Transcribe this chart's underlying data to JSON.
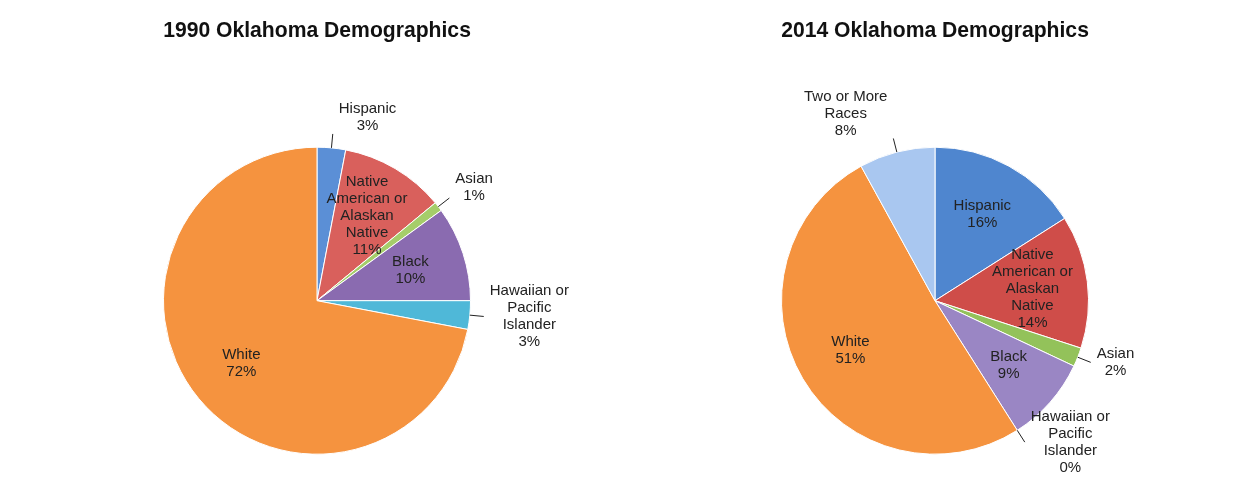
{
  "chart_data": [
    {
      "type": "pie",
      "title": "1990 Oklahoma Demographics",
      "categories": [
        "Hispanic",
        "Native American or Alaskan Native",
        "Asian",
        "Black",
        "Hawaiian or Pacific Islander",
        "White"
      ],
      "values": [
        3,
        11,
        1,
        10,
        3,
        72
      ],
      "value_labels": [
        "3%",
        "11%",
        "1%",
        "10%",
        "3%",
        "72%"
      ],
      "colors": [
        "#5b8fd6",
        "#d9605c",
        "#a5cd6a",
        "#8a6bb0",
        "#4fb8d8",
        "#f5933f"
      ]
    },
    {
      "type": "pie",
      "title": "2014 Oklahoma Demographics",
      "categories": [
        "Hispanic",
        "Native American or Alaskan Native",
        "Asian",
        "Black",
        "Hawaiian or Pacific Islander",
        "White",
        "Two or More Races"
      ],
      "values": [
        16,
        14,
        2,
        9,
        0,
        51,
        8
      ],
      "value_labels": [
        "16%",
        "14%",
        "2%",
        "9%",
        "0%",
        "51%",
        "8%"
      ],
      "colors": [
        "#4f86cf",
        "#cf4d49",
        "#93c25a",
        "#9a86c4",
        "#4fb8d8",
        "#f5933f",
        "#a9c7f0"
      ]
    }
  ]
}
